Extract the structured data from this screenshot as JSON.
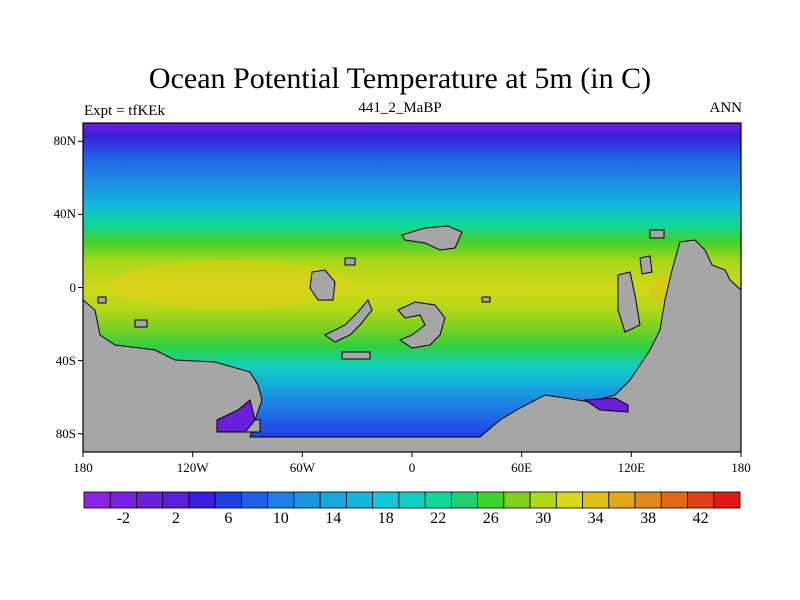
{
  "header": {
    "title": "Ocean Potential Temperature at 5m (in C)",
    "left": "Expt = tfKEk",
    "center": "441_2_MaBP",
    "right": "ANN"
  },
  "map_data": {
    "variable": "Ocean Potential Temperature at 5m",
    "units": "C",
    "lat_range": [
      -90,
      90
    ],
    "lon_range": [
      -180,
      180
    ],
    "lat_ticks": [
      {
        "value": 80,
        "label": "80N"
      },
      {
        "value": 40,
        "label": "40N"
      },
      {
        "value": 0,
        "label": "0"
      },
      {
        "value": -40,
        "label": "40S"
      },
      {
        "value": -80,
        "label": "80S"
      }
    ],
    "lon_ticks": [
      {
        "value": -180,
        "label": "180"
      },
      {
        "value": -120,
        "label": "120W"
      },
      {
        "value": -60,
        "label": "60W"
      },
      {
        "value": 0,
        "label": "0"
      },
      {
        "value": 60,
        "label": "60E"
      },
      {
        "value": 120,
        "label": "120E"
      },
      {
        "value": 180,
        "label": "180"
      }
    ],
    "land_color": "#a6a6a6",
    "colorbar": {
      "levels": [
        -4,
        -2,
        0,
        2,
        4,
        6,
        8,
        10,
        12,
        14,
        16,
        18,
        20,
        22,
        24,
        26,
        28,
        30,
        32,
        34,
        36,
        38,
        40,
        42,
        44
      ],
      "labels": [
        {
          "value": -2,
          "label": "-2"
        },
        {
          "value": 2,
          "label": "2"
        },
        {
          "value": 6,
          "label": "6"
        },
        {
          "value": 10,
          "label": "10"
        },
        {
          "value": 14,
          "label": "14"
        },
        {
          "value": 18,
          "label": "18"
        },
        {
          "value": 22,
          "label": "22"
        },
        {
          "value": 26,
          "label": "26"
        },
        {
          "value": 30,
          "label": "30"
        },
        {
          "value": 34,
          "label": "34"
        },
        {
          "value": 38,
          "label": "38"
        },
        {
          "value": 42,
          "label": "42"
        }
      ],
      "colors": [
        "#8b22e6",
        "#7a1fe0",
        "#6b1fdb",
        "#5a1fd8",
        "#3a1ee0",
        "#1f3fe6",
        "#1f5fe6",
        "#1f7fe6",
        "#1f95e0",
        "#14a8dc",
        "#12b8dc",
        "#10c8d8",
        "#10d0c0",
        "#10d89a",
        "#20d070",
        "#40d030",
        "#80d020",
        "#b0d818",
        "#d8d818",
        "#e0c018",
        "#e0a818",
        "#e08818",
        "#e06818",
        "#e04018",
        "#e01818"
      ]
    }
  }
}
